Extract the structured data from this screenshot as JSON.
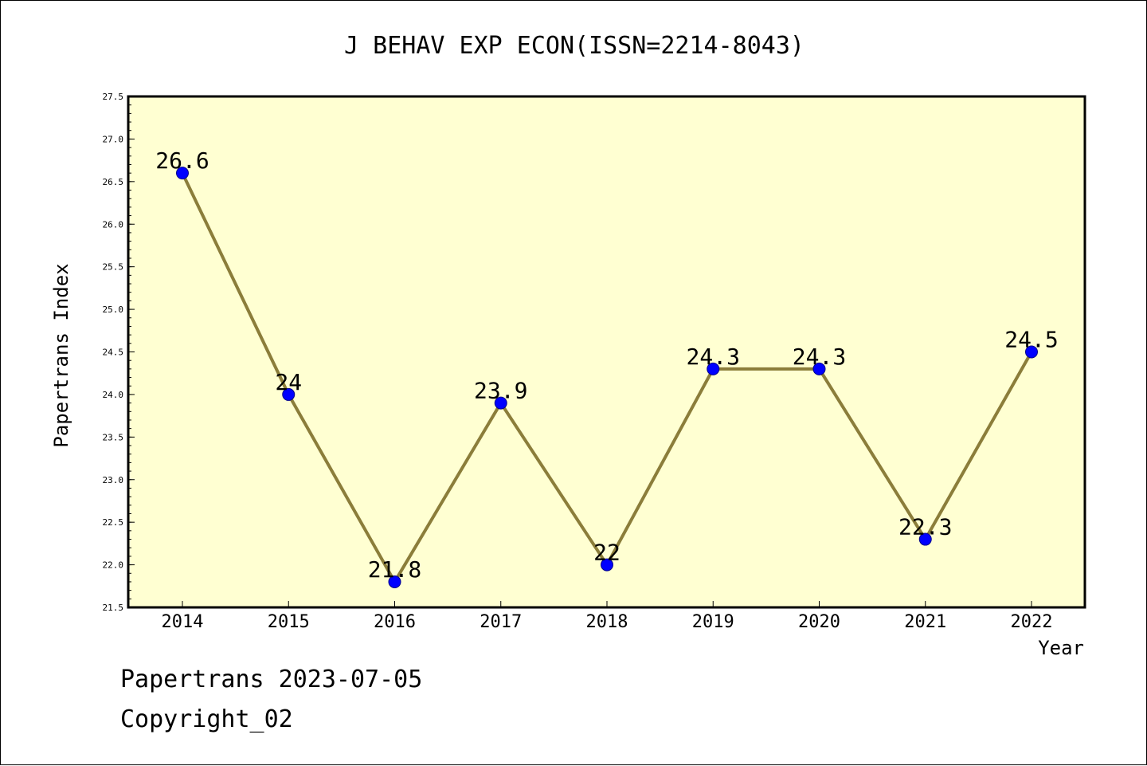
{
  "chart_data": {
    "type": "line",
    "title": "J BEHAV EXP ECON(ISSN=2214-8043)",
    "xlabel": "Year",
    "ylabel": "Papertrans Index",
    "x": [
      "2014",
      "2015",
      "2016",
      "2017",
      "2018",
      "2019",
      "2020",
      "2021",
      "2022"
    ],
    "series": [
      {
        "values": [
          26.6,
          24,
          21.8,
          23.9,
          22,
          24.3,
          24.3,
          22.3,
          24.5
        ],
        "labels": [
          "26.6",
          "24",
          "21.8",
          "23.9",
          "22",
          "24.3",
          "24.3",
          "22.3",
          "24.5"
        ]
      }
    ],
    "ylim": [
      21.5,
      27.5
    ],
    "yticks": [
      "21.5",
      "22.0",
      "22.5",
      "23.0",
      "23.5",
      "24.0",
      "24.5",
      "25.0",
      "25.5",
      "26.0",
      "26.5",
      "27.0",
      "27.5"
    ],
    "grid": false,
    "colors": {
      "plot_background": "#ffffd2",
      "line": "#8b7d3a",
      "marker": "#0000ff"
    }
  },
  "footer": {
    "line1": "Papertrans 2023-07-05",
    "line2": "Copyright_02"
  }
}
